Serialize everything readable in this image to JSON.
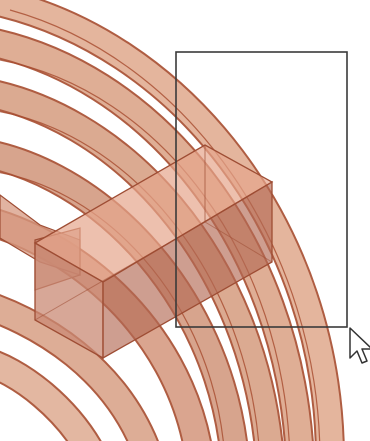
{
  "viewport": {
    "description_name": "3d-model-viewport",
    "colors": {
      "background": "#ffffff",
      "ring_fill": "#e7b9a2",
      "ring_stroke": "#a64b2e",
      "block_fill": "#e6a58c",
      "block_stroke": "#9e4d34",
      "block_shadow": "#b46a55",
      "selection_stroke": "#3a3a3a"
    }
  },
  "selection_box": {
    "state": "dragging"
  },
  "cursor": {
    "icon": "arrow-cursor-icon"
  }
}
